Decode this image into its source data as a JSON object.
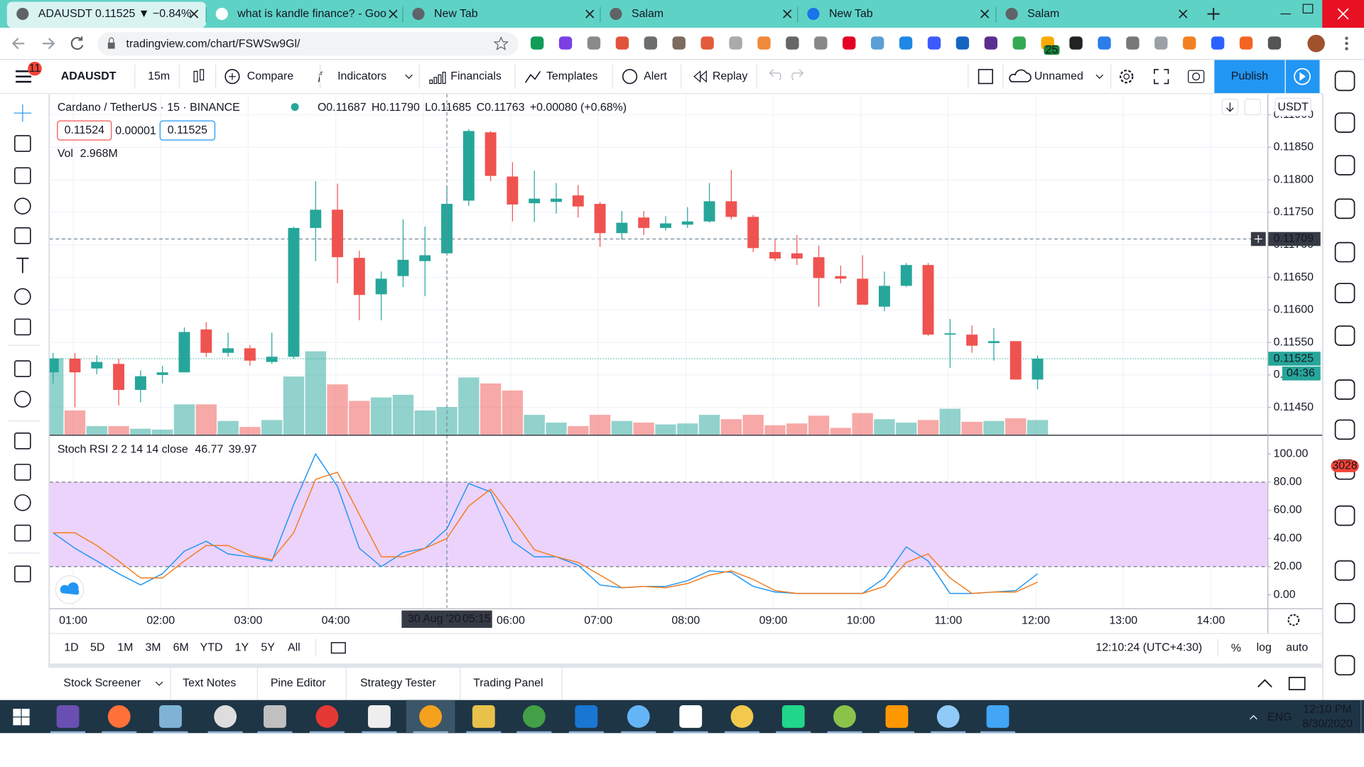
{
  "browser": {
    "tabs": [
      "ADAUSDT 0.11525 ▼ −0.84%",
      "what is kandle finance? - Goo",
      "New Tab",
      "Salam",
      "New Tab",
      "Salam"
    ],
    "url": "tradingview.com/chart/FSWSw9Gl/",
    "extension_badge": "25"
  },
  "toolbar": {
    "menu_badge": "11",
    "symbol": "ADAUSDT",
    "interval": "15m",
    "buttons": [
      "Compare",
      "Indicators",
      "Financials",
      "Templates",
      "Alert",
      "Replay"
    ],
    "layout_name": "Unnamed",
    "publish": "Publish"
  },
  "chart_data": {
    "type": "candlestick",
    "title": "Cardano / TetherUS · 15 · BINANCE",
    "legend": [
      "O0.11687",
      "H0.11790",
      "L0.11685",
      "C0.11763",
      "+0.00080 (+0.68%)"
    ],
    "quote": {
      "bid": "0.11524",
      "spread": "0.00001",
      "ask": "0.11525"
    },
    "currency": "USDT",
    "up_color": "#26a69a",
    "down_color": "#ef5350",
    "open": [
      0.11504,
      0.11525,
      0.1151,
      0.11517,
      0.11477,
      0.115,
      0.11504,
      0.1157,
      0.11534,
      0.11541,
      0.1152,
      0.11528,
      0.11726,
      0.11754,
      0.1168,
      0.11624,
      0.11652,
      0.11675,
      0.11687,
      0.11768,
      0.11873,
      0.11805,
      0.11764,
      0.11766,
      0.11776,
      0.11763,
      0.11718,
      0.11742,
      0.11726,
      0.11731,
      0.11736,
      0.11767,
      0.11743,
      0.11689,
      0.11687,
      0.11681,
      0.11652,
      0.11648,
      0.11605,
      0.11637,
      0.11669,
      0.11562,
      0.11562,
      0.11549,
      0.11552,
      0.11493
    ],
    "high": [
      0.11534,
      0.11534,
      0.1153,
      0.11525,
      0.11507,
      0.11514,
      0.11573,
      0.11581,
      0.11565,
      0.11546,
      0.11565,
      0.11728,
      0.11798,
      0.11794,
      0.11691,
      0.11659,
      0.11739,
      0.11728,
      0.1179,
      0.11878,
      0.11875,
      0.11827,
      0.11814,
      0.11795,
      0.11792,
      0.11766,
      0.11752,
      0.11752,
      0.11744,
      0.11758,
      0.11795,
      0.11815,
      0.11746,
      0.11708,
      0.11715,
      0.11699,
      0.11668,
      0.11684,
      0.11659,
      0.11672,
      0.11672,
      0.11586,
      0.11576,
      0.11572,
      0.11552,
      0.1153
    ],
    "low": [
      0.11487,
      0.1145,
      0.11501,
      0.11453,
      0.11458,
      0.11487,
      0.11504,
      0.11528,
      0.11528,
      0.11514,
      0.11517,
      0.11525,
      0.11675,
      0.11641,
      0.11584,
      0.11584,
      0.11635,
      0.11621,
      0.11685,
      0.1176,
      0.11798,
      0.11736,
      0.11735,
      0.11748,
      0.11742,
      0.11697,
      0.11708,
      0.11715,
      0.11722,
      0.11726,
      0.11734,
      0.11739,
      0.11689,
      0.11675,
      0.11669,
      0.11605,
      0.11641,
      0.11608,
      0.11598,
      0.11635,
      0.1156,
      0.11511,
      0.11534,
      0.11522,
      0.11493,
      0.11478
    ],
    "close": [
      0.11525,
      0.11504,
      0.1152,
      0.11477,
      0.11498,
      0.11504,
      0.11566,
      0.11534,
      0.11541,
      0.11522,
      0.11528,
      0.11726,
      0.11754,
      0.11681,
      0.11623,
      0.11648,
      0.11677,
      0.11684,
      0.11763,
      0.11875,
      0.11806,
      0.11762,
      0.11771,
      0.11771,
      0.11759,
      0.11718,
      0.11734,
      0.11726,
      0.11733,
      0.11736,
      0.11767,
      0.11743,
      0.11695,
      0.11679,
      0.11679,
      0.11649,
      0.11648,
      0.11608,
      0.11637,
      0.11669,
      0.11562,
      0.11564,
      0.11545,
      0.11552,
      0.11493,
      0.11525
    ],
    "ylim": [
      0.11408,
      0.11932
    ],
    "yticks": [
      {
        "value": 0.1145,
        "label": "0.11450"
      },
      {
        "value": 0.115,
        "label": "0.11500"
      },
      {
        "value": 0.1155,
        "label": "0.11550"
      },
      {
        "value": 0.116,
        "label": "0.11600"
      },
      {
        "value": 0.1165,
        "label": "0.11650"
      },
      {
        "value": 0.117,
        "label": "0.11700"
      },
      {
        "value": 0.1175,
        "label": "0.11750"
      },
      {
        "value": 0.118,
        "label": "0.11800"
      },
      {
        "value": 0.1185,
        "label": "0.11850"
      },
      {
        "value": 0.119,
        "label": "0.11900"
      }
    ],
    "grid": true,
    "crosshair_price": 0.11709,
    "crosshair_date": "30 Aug '20",
    "crosshair_time": "05:15",
    "last_price": 0.11525,
    "countdown": "04:36",
    "xtick_labels": [
      "01:00",
      "02:00",
      "03:00",
      "04:00",
      null,
      "06:00",
      "07:00",
      "08:00",
      "09:00",
      "10:00",
      "11:00",
      "12:00",
      "13:00",
      "14:00"
    ],
    "volume": {
      "name": "Vol",
      "hover_label": "2.968M",
      "values": [
        8.17,
        2.6,
        0.93,
        0.93,
        0.65,
        0.56,
        3.25,
        3.25,
        1.48,
        0.84,
        1.58,
        6.22,
        8.91,
        5.38,
        3.62,
        3.99,
        4.27,
        2.6,
        2.968,
        6.12,
        5.48,
        4.73,
        2.13,
        1.3,
        0.93,
        2.13,
        1.48,
        1.3,
        1.11,
        1.21,
        2.13,
        1.67,
        2.13,
        1.02,
        1.21,
        2.04,
        0.74,
        2.32,
        1.67,
        1.3,
        1.58,
        2.78,
        1.39,
        1.48,
        1.76,
        1.58
      ]
    },
    "indicator": {
      "title": "Stoch RSI 2 2 14 14 close",
      "ylim": [
        -9.26,
        112.96
      ],
      "yticks": [
        {
          "value": 100,
          "label": "100.00"
        },
        {
          "value": 80,
          "label": "80.00"
        },
        {
          "value": 60,
          "label": "60.00"
        },
        {
          "value": 40,
          "label": "40.00"
        },
        {
          "value": 20,
          "label": "20.00"
        },
        {
          "value": 0,
          "label": "0.00"
        }
      ],
      "bands": [
        20,
        80
      ],
      "band_color": "#ebd3fb",
      "series": [
        {
          "color": "#2196f3",
          "value_label": "46.77",
          "values": [
            44,
            33,
            24,
            15,
            7,
            15,
            31,
            38,
            29,
            27,
            24,
            64,
            100,
            77,
            33,
            20,
            30,
            33,
            46.77,
            79,
            73,
            38,
            27,
            27,
            21,
            7,
            5,
            6,
            6,
            10,
            17,
            16,
            6,
            2,
            1,
            1,
            1,
            1,
            12,
            34,
            24,
            1,
            1,
            2,
            3,
            15
          ]
        },
        {
          "color": "#f57c1f",
          "value_label": "39.97",
          "values": [
            44,
            44,
            35,
            24,
            12,
            12,
            24,
            35,
            35,
            28,
            25,
            44,
            82,
            87,
            57,
            27,
            27,
            33,
            39.97,
            63,
            75,
            54,
            32,
            27,
            23,
            14,
            5,
            6,
            5,
            8,
            14,
            17,
            11,
            3,
            1,
            1,
            1,
            1,
            6,
            23,
            29,
            12,
            1,
            2,
            2,
            9
          ]
        }
      ]
    }
  },
  "bottom_bar": {
    "ranges": [
      "1D",
      "5D",
      "1M",
      "3M",
      "6M",
      "YTD",
      "1Y",
      "5Y",
      "All"
    ],
    "clock": "12:10:24 (UTC+4:30)",
    "percent": "%",
    "log": "log",
    "auto": "auto",
    "tabs": [
      "Stock Screener",
      "Text Notes",
      "Pine Editor",
      "Strategy Tester",
      "Trading Panel"
    ]
  },
  "sidebar": {
    "alerts_badge": "3028"
  },
  "taskbar": {
    "language": "ENG",
    "time": "12:10 PM",
    "date": "8/30/2020"
  }
}
